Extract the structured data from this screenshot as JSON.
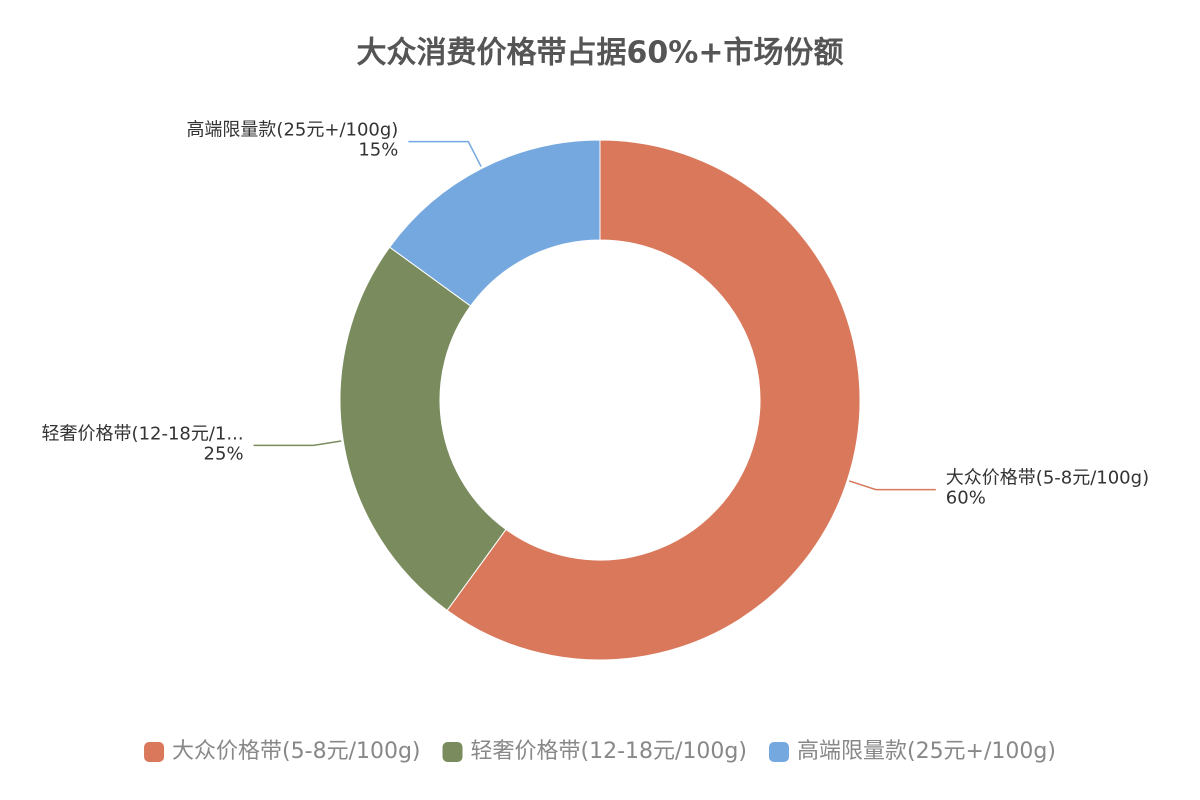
{
  "chart_data": {
    "type": "pie",
    "title": "大众消费价格带占据60%+市场份额",
    "categories": [
      "大众价格带(5-8元/100g)",
      "轻奢价格带(12-18元/100g)",
      "高端限量款(25元+/100g)"
    ],
    "labels": [
      "大众价格带(5-8元/100g)",
      "轻奢价格带(12-18元/1...",
      "高端限量款(25元+/100g)"
    ],
    "values": [
      60,
      25,
      15
    ],
    "value_labels": [
      "60%",
      "25%",
      "15%"
    ],
    "colors": [
      "#d9785a",
      "#7a8c5e",
      "#74a8df"
    ],
    "legend": "bottom"
  }
}
